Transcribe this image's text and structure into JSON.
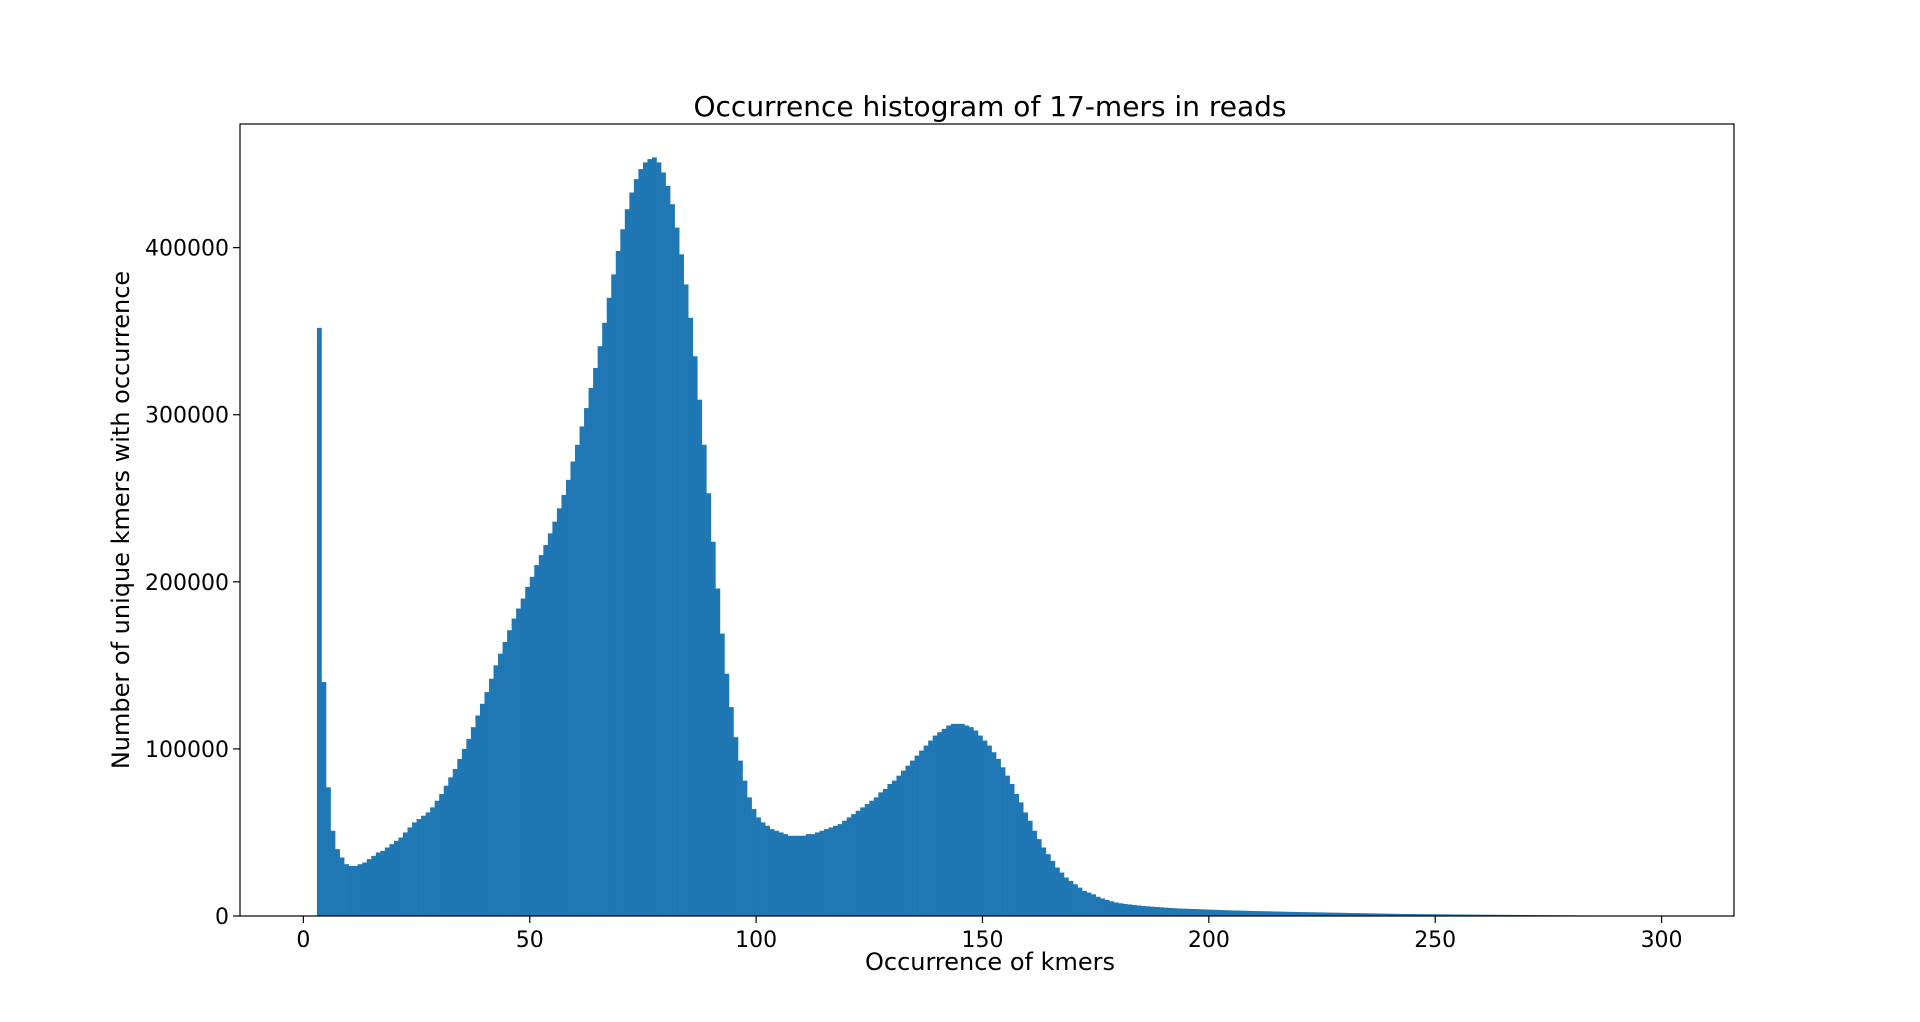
{
  "chart_data": {
    "type": "bar",
    "title": "Occurrence histogram of 17-mers in reads",
    "xlabel": "Occurrence of kmers",
    "ylabel": "Number of unique kmers with occurrence",
    "xlim": [
      -14,
      316
    ],
    "ylim": [
      0,
      474000
    ],
    "xticks": [
      0,
      50,
      100,
      150,
      200,
      250,
      300
    ],
    "yticks": [
      0,
      100000,
      200000,
      300000,
      400000
    ],
    "grid": false,
    "bar_color": "#1f77b4",
    "bin_width": 1,
    "x_start": 3,
    "values": [
      352000,
      140000,
      77000,
      51000,
      40000,
      35000,
      31000,
      30000,
      30000,
      31000,
      32000,
      34000,
      36000,
      38000,
      39000,
      41000,
      43000,
      45000,
      47000,
      50000,
      53000,
      56000,
      58000,
      60000,
      62000,
      65000,
      69000,
      73000,
      78000,
      83000,
      88000,
      94000,
      100000,
      106000,
      113000,
      120000,
      127000,
      134000,
      142000,
      150000,
      157000,
      164000,
      171000,
      178000,
      184000,
      190000,
      197000,
      203000,
      210000,
      216000,
      222000,
      229000,
      236000,
      244000,
      252000,
      261000,
      272000,
      282000,
      293000,
      304000,
      316000,
      328000,
      341000,
      355000,
      370000,
      384000,
      398000,
      411000,
      423000,
      433000,
      441000,
      447000,
      451000,
      453000,
      454000,
      451000,
      445000,
      437000,
      426000,
      412000,
      396000,
      378000,
      358000,
      335000,
      309000,
      282000,
      253000,
      224000,
      196000,
      169000,
      145000,
      125000,
      107000,
      93000,
      81000,
      71000,
      64000,
      59000,
      56000,
      54000,
      52000,
      51000,
      50000,
      49000,
      48000,
      48000,
      48000,
      48000,
      49000,
      49000,
      50000,
      51000,
      52000,
      53000,
      54000,
      55000,
      57000,
      59000,
      61000,
      63000,
      65000,
      67000,
      69000,
      71000,
      74000,
      76000,
      79000,
      81000,
      84000,
      87000,
      90000,
      93000,
      96000,
      99000,
      102000,
      105000,
      108000,
      110000,
      112000,
      114000,
      115000,
      115000,
      115000,
      114000,
      113000,
      111000,
      108000,
      105000,
      102000,
      98000,
      94000,
      89000,
      84000,
      79000,
      73000,
      68000,
      62000,
      57000,
      51000,
      46000,
      41000,
      37000,
      33000,
      29000,
      26000,
      23000,
      21000,
      19000,
      17000,
      15000,
      14000,
      13000,
      11500,
      10500,
      9600,
      8800,
      8100,
      7600,
      7200,
      6900,
      6600,
      6300,
      6000,
      5800,
      5600,
      5400,
      5200,
      5000,
      4800,
      4650,
      4500,
      4400,
      4300,
      4200,
      4100,
      4000,
      3900,
      3800,
      3700,
      3600,
      3500,
      3400,
      3300,
      3250,
      3200,
      3100,
      3000,
      2950,
      2900,
      2850,
      2800,
      2700,
      2650,
      2600,
      2500,
      2450,
      2400,
      2350,
      2300,
      2250,
      2200,
      2150,
      2100,
      2050,
      2000,
      1950,
      1900,
      1850,
      1800,
      1750,
      1700,
      1650,
      1600,
      1550,
      1500,
      1450,
      1400,
      1350,
      1300,
      1250,
      1200,
      1180,
      1150,
      1120,
      1100,
      1080,
      1050,
      1020,
      1000,
      980,
      950,
      920,
      900,
      880,
      850,
      820,
      800,
      780,
      760,
      740,
      720,
      700,
      680,
      660,
      640,
      620,
      600,
      580,
      560,
      540,
      520,
      500,
      480,
      460,
      440,
      420,
      400,
      380,
      360,
      340,
      320,
      300,
      280,
      260,
      240,
      220,
      200,
      180,
      160,
      140,
      120,
      100,
      80,
      60,
      40
    ]
  }
}
